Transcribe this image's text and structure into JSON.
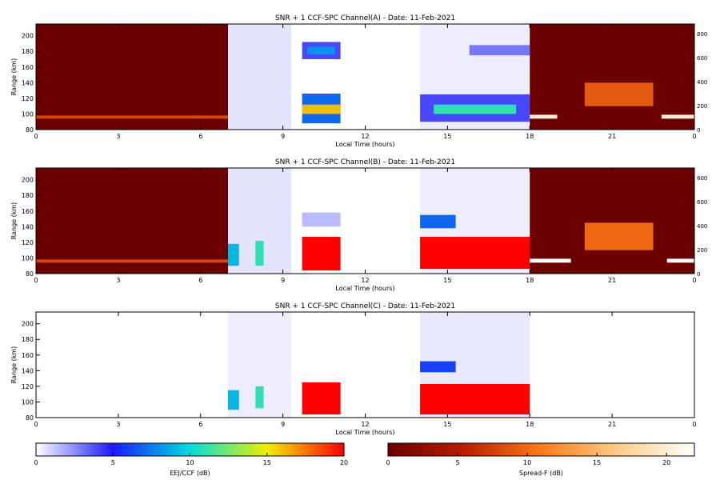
{
  "chart_data": [
    {
      "type": "heatmap",
      "title": "SNR + 1 CCF-SPC Channel(A) - Date: 11-Feb-2021",
      "xlabel": "Local Time (hours)",
      "ylabel": "Range (km)",
      "xlim": [
        0,
        24
      ],
      "ylim": [
        80,
        215
      ],
      "xticks": [
        "0",
        "3",
        "6",
        "9",
        "12",
        "15",
        "18",
        "21",
        "0"
      ],
      "yticks": [
        "80",
        "100",
        "120",
        "140",
        "160",
        "180",
        "200"
      ],
      "y2lim": [
        0,
        880
      ],
      "y2ticks": [
        "0",
        "200",
        "400",
        "600",
        "800"
      ],
      "grid": false,
      "blocks": [
        {
          "x": [
            0,
            7
          ],
          "y": [
            80,
            215
          ],
          "value": 0,
          "scale": "spread"
        },
        {
          "x": [
            0,
            7
          ],
          "y": [
            94,
            98
          ],
          "value": 8,
          "scale": "spread"
        },
        {
          "x": [
            7,
            9.3
          ],
          "y": [
            80,
            215
          ],
          "value": 0.6,
          "scale": "eej"
        },
        {
          "x": [
            9.7,
            11.1
          ],
          "y": [
            170,
            192
          ],
          "value": 4,
          "scale": "eej"
        },
        {
          "x": [
            9.9,
            10.9
          ],
          "y": [
            176,
            186
          ],
          "value": 8,
          "scale": "eej"
        },
        {
          "x": [
            9.7,
            11.1
          ],
          "y": [
            88,
            126
          ],
          "value": 7,
          "scale": "eej"
        },
        {
          "x": [
            9.7,
            11.1
          ],
          "y": [
            100,
            112
          ],
          "value": 16,
          "scale": "eej"
        },
        {
          "x": [
            14,
            18
          ],
          "y": [
            80,
            215
          ],
          "value": 0.4,
          "scale": "eej"
        },
        {
          "x": [
            15.8,
            18
          ],
          "y": [
            175,
            188
          ],
          "value": 3,
          "scale": "eej"
        },
        {
          "x": [
            14,
            18
          ],
          "y": [
            90,
            125
          ],
          "value": 4,
          "scale": "eej"
        },
        {
          "x": [
            14.5,
            17.5
          ],
          "y": [
            100,
            112
          ],
          "value": 11,
          "scale": "eej"
        },
        {
          "x": [
            18,
            24
          ],
          "y": [
            80,
            215
          ],
          "value": 0,
          "scale": "spread"
        },
        {
          "x": [
            20,
            22.5
          ],
          "y": [
            110,
            140
          ],
          "value": 9,
          "scale": "spread"
        },
        {
          "x": [
            18,
            19
          ],
          "y": [
            94,
            99
          ],
          "value": 20,
          "scale": "spread"
        },
        {
          "x": [
            22.8,
            24
          ],
          "y": [
            94,
            99
          ],
          "value": 20,
          "scale": "spread"
        }
      ]
    },
    {
      "type": "heatmap",
      "title": "SNR + 1 CCF-SPC Channel(B) - Date: 11-Feb-2021",
      "xlabel": "Local Time (hours)",
      "ylabel": "Range (km)",
      "xlim": [
        0,
        24
      ],
      "ylim": [
        80,
        215
      ],
      "xticks": [
        "0",
        "3",
        "6",
        "9",
        "12",
        "15",
        "18",
        "21",
        "0"
      ],
      "yticks": [
        "80",
        "100",
        "120",
        "140",
        "160",
        "180",
        "200"
      ],
      "y2lim": [
        0,
        880
      ],
      "y2ticks": [
        "0",
        "200",
        "400",
        "600",
        "800"
      ],
      "grid": false,
      "blocks": [
        {
          "x": [
            0,
            7
          ],
          "y": [
            80,
            215
          ],
          "value": 0,
          "scale": "spread"
        },
        {
          "x": [
            0,
            7
          ],
          "y": [
            94,
            98
          ],
          "value": 8,
          "scale": "spread"
        },
        {
          "x": [
            7,
            9.3
          ],
          "y": [
            80,
            215
          ],
          "value": 0.6,
          "scale": "eej"
        },
        {
          "x": [
            7,
            7.4
          ],
          "y": [
            90,
            118
          ],
          "value": 9,
          "scale": "eej"
        },
        {
          "x": [
            8,
            8.3
          ],
          "y": [
            90,
            122
          ],
          "value": 11,
          "scale": "eej"
        },
        {
          "x": [
            9.7,
            11.1
          ],
          "y": [
            140,
            158
          ],
          "value": 1.5,
          "scale": "eej"
        },
        {
          "x": [
            9.7,
            11.1
          ],
          "y": [
            84,
            127
          ],
          "value": 20,
          "scale": "eej"
        },
        {
          "x": [
            14,
            18
          ],
          "y": [
            80,
            215
          ],
          "value": 0.4,
          "scale": "eej"
        },
        {
          "x": [
            14,
            15.3
          ],
          "y": [
            138,
            155
          ],
          "value": 7,
          "scale": "eej"
        },
        {
          "x": [
            14,
            18
          ],
          "y": [
            86,
            127
          ],
          "value": 20,
          "scale": "eej"
        },
        {
          "x": [
            18,
            24
          ],
          "y": [
            80,
            215
          ],
          "value": 0,
          "scale": "spread"
        },
        {
          "x": [
            20,
            22.5
          ],
          "y": [
            110,
            145
          ],
          "value": 10,
          "scale": "spread"
        },
        {
          "x": [
            18,
            19.5
          ],
          "y": [
            94,
            99
          ],
          "value": 22,
          "scale": "spread"
        },
        {
          "x": [
            23,
            24
          ],
          "y": [
            94,
            99
          ],
          "value": 22,
          "scale": "spread"
        }
      ]
    },
    {
      "type": "heatmap",
      "title": "SNR + 1 CCF-SPC Channel(C) - Date: 11-Feb-2021",
      "xlabel": "Local Time (hours)",
      "ylabel": "Range (km)",
      "xlim": [
        0,
        24
      ],
      "ylim": [
        80,
        215
      ],
      "xticks": [
        "0",
        "3",
        "6",
        "9",
        "12",
        "15",
        "18",
        "21",
        "0"
      ],
      "yticks": [
        "80",
        "100",
        "120",
        "140",
        "160",
        "180",
        "200"
      ],
      "grid": false,
      "blocks": [
        {
          "x": [
            7,
            9.3
          ],
          "y": [
            80,
            215
          ],
          "value": 0.4,
          "scale": "eej"
        },
        {
          "x": [
            7,
            7.4
          ],
          "y": [
            90,
            115
          ],
          "value": 9,
          "scale": "eej"
        },
        {
          "x": [
            8,
            8.3
          ],
          "y": [
            92,
            120
          ],
          "value": 11,
          "scale": "eej"
        },
        {
          "x": [
            9.7,
            11.1
          ],
          "y": [
            84,
            125
          ],
          "value": 20,
          "scale": "eej"
        },
        {
          "x": [
            14,
            18
          ],
          "y": [
            80,
            215
          ],
          "value": 0.5,
          "scale": "eej"
        },
        {
          "x": [
            14,
            15.3
          ],
          "y": [
            138,
            152
          ],
          "value": 6,
          "scale": "eej"
        },
        {
          "x": [
            14,
            18
          ],
          "y": [
            84,
            123
          ],
          "value": 20,
          "scale": "eej"
        }
      ]
    }
  ],
  "colorbars": [
    {
      "name": "EEJ",
      "label": "EEJ/CCF (dB)",
      "range": [
        0,
        20
      ],
      "ticks": [
        "0",
        "5",
        "10",
        "15",
        "20"
      ],
      "colors": [
        "#ffffff",
        "#1a1aff",
        "#00dddd",
        "#eeee00",
        "#ff0000"
      ]
    },
    {
      "name": "Spread",
      "label": "Spread-F (dB)",
      "range": [
        0,
        22
      ],
      "ticks": [
        "0",
        "5",
        "10",
        "15",
        "20"
      ],
      "colors": [
        "#6b0000",
        "#b81e00",
        "#ff7a1a",
        "#ffcc88",
        "#ffffff"
      ]
    }
  ]
}
